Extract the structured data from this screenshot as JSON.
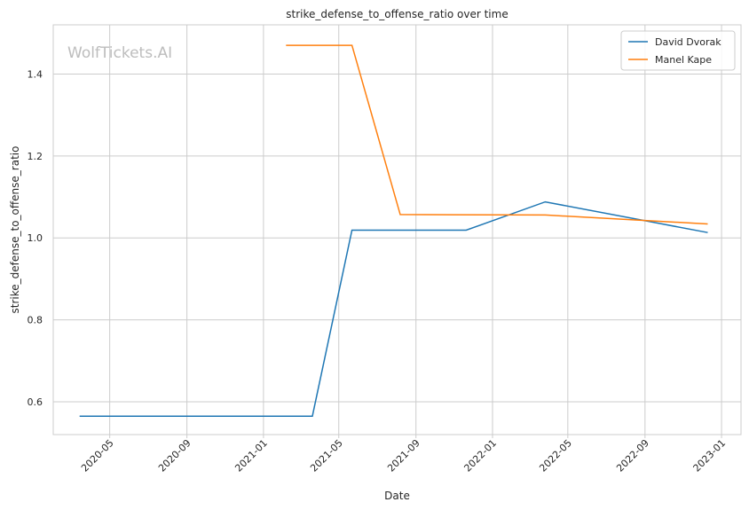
{
  "chart_data": {
    "type": "line",
    "title": "strike_defense_to_offense_ratio over time",
    "xlabel": "Date",
    "ylabel": "strike_defense_to_offense_ratio",
    "watermark": "WolfTickets.AI",
    "xlim": [
      "2020-02-01",
      "2023-02-01"
    ],
    "ylim": [
      0.52,
      1.52
    ],
    "x_ticks": [
      "2020-05-01",
      "2020-09-01",
      "2021-01-01",
      "2021-05-01",
      "2021-09-01",
      "2022-01-01",
      "2022-05-01",
      "2022-09-01",
      "2023-01-01"
    ],
    "x_tick_labels": [
      "2020-05",
      "2020-09",
      "2021-01",
      "2021-05",
      "2021-09",
      "2022-01",
      "2022-05",
      "2022-09",
      "2023-01"
    ],
    "y_ticks": [
      0.6,
      0.8,
      1.0,
      1.2,
      1.4
    ],
    "y_tick_labels": [
      "0.6",
      "0.8",
      "1.0",
      "1.2",
      "1.4"
    ],
    "grid": true,
    "legend_position": "top-right",
    "series": [
      {
        "name": "David Dvorak",
        "color": "#1f77b4",
        "points": [
          {
            "x": "2020-03-14",
            "y": 0.565
          },
          {
            "x": "2021-03-20",
            "y": 0.565
          },
          {
            "x": "2021-05-22",
            "y": 1.019
          },
          {
            "x": "2021-11-20",
            "y": 1.019
          },
          {
            "x": "2022-03-26",
            "y": 1.088
          },
          {
            "x": "2022-12-10",
            "y": 1.013
          }
        ]
      },
      {
        "name": "Manel Kape",
        "color": "#ff7f0e",
        "points": [
          {
            "x": "2021-02-06",
            "y": 1.47
          },
          {
            "x": "2021-05-22",
            "y": 1.47
          },
          {
            "x": "2021-08-07",
            "y": 1.057
          },
          {
            "x": "2022-03-26",
            "y": 1.056
          },
          {
            "x": "2022-12-10",
            "y": 1.034
          }
        ]
      }
    ]
  }
}
